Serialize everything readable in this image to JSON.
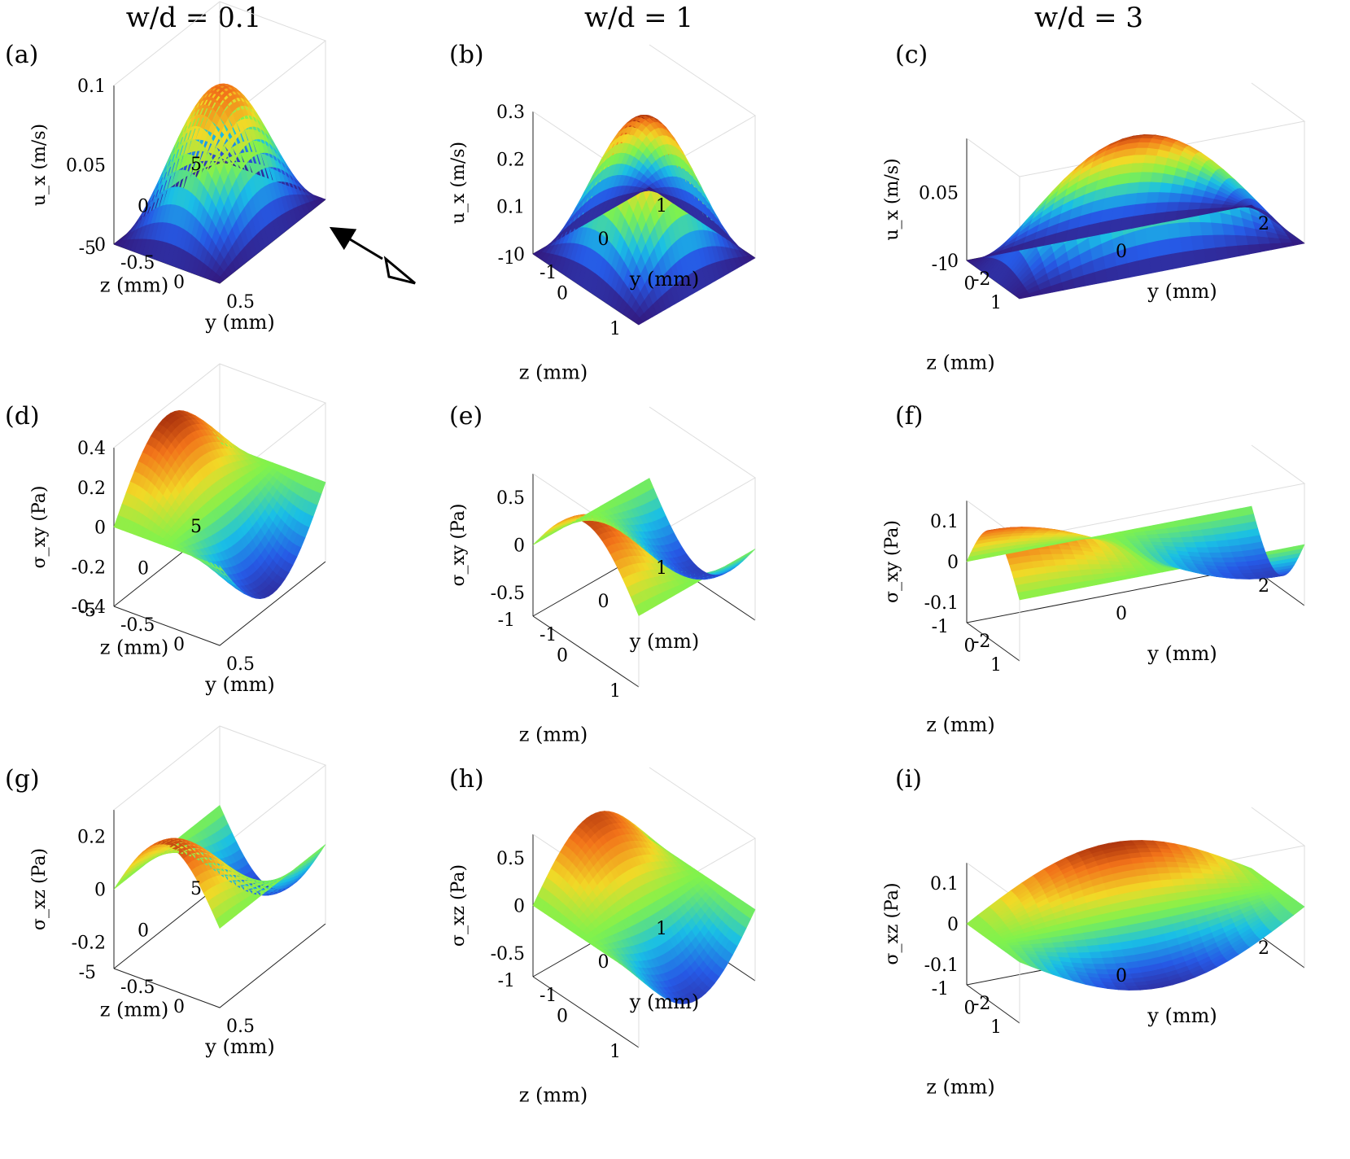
{
  "columns": [
    {
      "label": "w/d = 0.1",
      "var": "w/d",
      "value": "0.1"
    },
    {
      "label": "w/d = 1",
      "var": "w/d",
      "value": "1"
    },
    {
      "label": "w/d = 3",
      "var": "w/d",
      "value": "3"
    }
  ],
  "view_arrow_icon": "eye-view-direction-icon",
  "chart_data": [
    {
      "panel": "(a)",
      "type": "surface",
      "quantity": "u_x",
      "zlabel": "u_x (m/s)",
      "xlabel": "y (mm)",
      "ylabel": "z (mm)",
      "w_over_d": 0.1,
      "y_range": [
        -0.5,
        0.5
      ],
      "z_range": [
        -5,
        5
      ],
      "zlim": [
        0,
        0.1
      ],
      "peak": 0.085,
      "ticks": {
        "z_axis": [
          "0",
          "0.05",
          "0.1"
        ],
        "z_coord": [
          "5",
          "0",
          "-5"
        ],
        "y_coord": [
          "-0.5",
          "0",
          "0.5"
        ]
      }
    },
    {
      "panel": "(b)",
      "type": "surface",
      "quantity": "u_x",
      "zlabel": "u_x (m/s)",
      "xlabel": "y (mm)",
      "ylabel": "z (mm)",
      "w_over_d": 1,
      "y_range": [
        -1,
        1
      ],
      "z_range": [
        -1,
        1
      ],
      "zlim": [
        0,
        0.3
      ],
      "peak": 0.29,
      "ticks": {
        "z_axis": [
          "0",
          "0.1",
          "0.2",
          "0.3"
        ],
        "z_coord": [
          "1",
          "0",
          "-1"
        ],
        "y_coord": [
          "-1",
          "0",
          "1"
        ]
      }
    },
    {
      "panel": "(c)",
      "type": "surface",
      "quantity": "u_x",
      "zlabel": "u_x (m/s)",
      "xlabel": "y (mm)",
      "ylabel": "z (mm)",
      "w_over_d": 3,
      "y_range": [
        -3,
        3
      ],
      "z_range": [
        -1,
        1
      ],
      "zlim": [
        0,
        0.09
      ],
      "peak": 0.085,
      "ticks": {
        "z_axis": [
          "0",
          "0.05"
        ],
        "z_coord": [
          "1",
          "0",
          "-1"
        ],
        "y_coord": [
          "-2",
          "0",
          "2"
        ]
      }
    },
    {
      "panel": "(d)",
      "type": "surface",
      "quantity": "sigma_xy",
      "zlabel": "σ_xy (Pa)",
      "xlabel": "y (mm)",
      "ylabel": "z (mm)",
      "w_over_d": 0.1,
      "y_range": [
        -0.5,
        0.5
      ],
      "z_range": [
        -5,
        5
      ],
      "zlim": [
        -0.4,
        0.4
      ],
      "peak": 0.35,
      "ticks": {
        "z_axis": [
          "-0.4",
          "-0.2",
          "0",
          "0.2",
          "0.4"
        ],
        "z_coord": [
          "5",
          "0",
          "-5"
        ],
        "y_coord": [
          "-0.5",
          "0",
          "0.5"
        ]
      }
    },
    {
      "panel": "(e)",
      "type": "surface",
      "quantity": "sigma_xy",
      "zlabel": "σ_xy (Pa)",
      "xlabel": "y (mm)",
      "ylabel": "z (mm)",
      "w_over_d": 1,
      "y_range": [
        -1,
        1
      ],
      "z_range": [
        -1,
        1
      ],
      "zlim": [
        -0.75,
        0.75
      ],
      "peak": 0.6,
      "ticks": {
        "z_axis": [
          "-0.5",
          "0",
          "0.5"
        ],
        "z_coord": [
          "1",
          "0",
          "-1"
        ],
        "y_coord": [
          "-1",
          "0",
          "1"
        ]
      }
    },
    {
      "panel": "(f)",
      "type": "surface",
      "quantity": "sigma_xy",
      "zlabel": "σ_xy (Pa)",
      "xlabel": "y (mm)",
      "ylabel": "z (mm)",
      "w_over_d": 3,
      "y_range": [
        -3,
        3
      ],
      "z_range": [
        -1,
        1
      ],
      "zlim": [
        -0.15,
        0.15
      ],
      "peak": 0.12,
      "ticks": {
        "z_axis": [
          "-0.1",
          "0",
          "0.1"
        ],
        "z_coord": [
          "1",
          "0",
          "-1"
        ],
        "y_coord": [
          "-2",
          "0",
          "2"
        ]
      }
    },
    {
      "panel": "(g)",
      "type": "surface",
      "quantity": "sigma_xz",
      "zlabel": "σ_xz (Pa)",
      "xlabel": "y (mm)",
      "ylabel": "z (mm)",
      "w_over_d": 0.1,
      "y_range": [
        -0.5,
        0.5
      ],
      "z_range": [
        -5,
        5
      ],
      "zlim": [
        -0.3,
        0.3
      ],
      "peak": 0.24,
      "ticks": {
        "z_axis": [
          "-0.2",
          "0",
          "0.2"
        ],
        "z_coord": [
          "5",
          "0",
          "-5"
        ],
        "y_coord": [
          "-0.5",
          "0",
          "0.5"
        ]
      }
    },
    {
      "panel": "(h)",
      "type": "surface",
      "quantity": "sigma_xz",
      "zlabel": "σ_xz (Pa)",
      "xlabel": "y (mm)",
      "ylabel": "z (mm)",
      "w_over_d": 1,
      "y_range": [
        -1,
        1
      ],
      "z_range": [
        -1,
        1
      ],
      "zlim": [
        -0.75,
        0.75
      ],
      "peak": 0.6,
      "ticks": {
        "z_axis": [
          "-0.5",
          "0",
          "0.5"
        ],
        "z_coord": [
          "1",
          "0",
          "-1"
        ],
        "y_coord": [
          "-1",
          "0",
          "1"
        ]
      }
    },
    {
      "panel": "(i)",
      "type": "surface",
      "quantity": "sigma_xz",
      "zlabel": "σ_xz (Pa)",
      "xlabel": "y (mm)",
      "ylabel": "z (mm)",
      "w_over_d": 3,
      "y_range": [
        -3,
        3
      ],
      "z_range": [
        -1,
        1
      ],
      "zlim": [
        -0.15,
        0.15
      ],
      "peak": 0.13,
      "ticks": {
        "z_axis": [
          "-0.1",
          "0",
          "0.1"
        ],
        "z_coord": [
          "1",
          "0",
          "-1"
        ],
        "y_coord": [
          "-2",
          "0",
          "2"
        ]
      }
    }
  ]
}
